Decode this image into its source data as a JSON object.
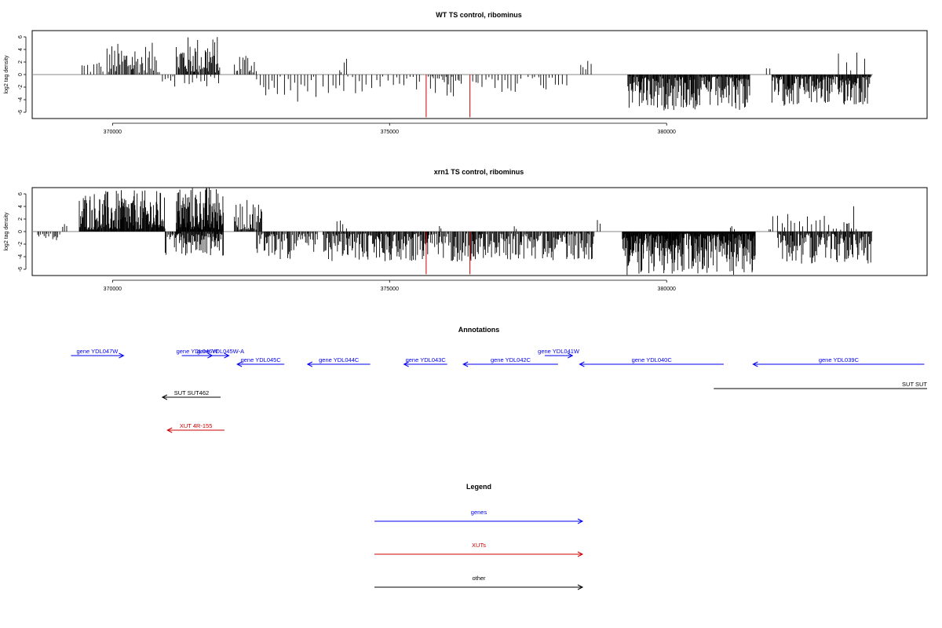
{
  "chart_data": [
    {
      "type": "bar",
      "title": "WT TS control, ribominus",
      "ylabel": "log2 tag density",
      "xlabel": "",
      "xlim": [
        368550,
        384700
      ],
      "ylim": [
        -7,
        7
      ],
      "xticks": [
        370000,
        375000,
        380000
      ],
      "xtick_labels": [
        "370000",
        "375000",
        "380000"
      ],
      "yticks": [
        6,
        4,
        2,
        0,
        -2,
        -4,
        -6
      ],
      "ytick_labels": [
        "6",
        "4",
        "2",
        "0",
        "-2",
        "-4",
        "-6"
      ],
      "baseline_range": [
        368550,
        383720
      ],
      "regions": [
        {
          "start": 369450,
          "end": 369850,
          "sign": 1,
          "max": 2.3,
          "step": 45
        },
        {
          "start": 369900,
          "end": 370850,
          "sign": 1,
          "max": 4.8,
          "step": 22
        },
        {
          "start": 370900,
          "end": 371150,
          "sign": -1,
          "max": 2.8,
          "step": 40
        },
        {
          "start": 371150,
          "end": 371950,
          "sign": 1,
          "max": 5.9,
          "step": 15
        },
        {
          "start": 371300,
          "end": 371950,
          "sign": -1,
          "max": 1.8,
          "step": 60
        },
        {
          "start": 372200,
          "end": 372600,
          "sign": 1,
          "max": 3.6,
          "step": 28
        },
        {
          "start": 372600,
          "end": 373700,
          "sign": -1,
          "max": 4.2,
          "step": 55
        },
        {
          "start": 374100,
          "end": 374250,
          "sign": 1,
          "max": 2.3,
          "step": 40
        },
        {
          "start": 373800,
          "end": 375600,
          "sign": -1,
          "max": 2.7,
          "step": 75
        },
        {
          "start": 375700,
          "end": 376300,
          "sign": -1,
          "max": 3.6,
          "step": 32
        },
        {
          "start": 376500,
          "end": 377400,
          "sign": -1,
          "max": 2.6,
          "step": 55
        },
        {
          "start": 377500,
          "end": 378200,
          "sign": -1,
          "max": 2.2,
          "step": 60
        },
        {
          "start": 378450,
          "end": 378700,
          "sign": 1,
          "max": 2.0,
          "step": 60
        },
        {
          "start": 379300,
          "end": 381500,
          "sign": -1,
          "max": 5.5,
          "step": 12
        },
        {
          "start": 381800,
          "end": 381900,
          "sign": 1,
          "max": 1.6,
          "step": 50
        },
        {
          "start": 381900,
          "end": 383700,
          "sign": -1,
          "max": 4.7,
          "step": 12
        },
        {
          "start": 383100,
          "end": 383600,
          "sign": 1,
          "max": 3.5,
          "step": 120
        }
      ],
      "highlights": [
        {
          "x": 375660,
          "y": -6.8,
          "color": "#cc0000"
        },
        {
          "x": 376450,
          "y": -6.8,
          "color": "#cc0000"
        }
      ]
    },
    {
      "type": "bar",
      "title": "xrn1 TS control, ribominus",
      "ylabel": "log2 tag density",
      "xlabel": "",
      "xlim": [
        368550,
        384700
      ],
      "ylim": [
        -7,
        7
      ],
      "xticks": [
        370000,
        375000,
        380000
      ],
      "xtick_labels": [
        "370000",
        "375000",
        "380000"
      ],
      "yticks": [
        6,
        4,
        2,
        0,
        -2,
        -4,
        -6
      ],
      "ytick_labels": [
        "6",
        "4",
        "2",
        "0",
        "-2",
        "-4",
        "-6"
      ],
      "baseline_range": [
        368550,
        383720
      ],
      "regions": [
        {
          "start": 368650,
          "end": 369050,
          "sign": -1,
          "max": 1.3,
          "step": 30
        },
        {
          "start": 369100,
          "end": 369200,
          "sign": 1,
          "max": 1.0,
          "step": 50
        },
        {
          "start": 369400,
          "end": 370950,
          "sign": 1,
          "max": 6.3,
          "step": 10
        },
        {
          "start": 370950,
          "end": 371200,
          "sign": -1,
          "max": 3.5,
          "step": 18
        },
        {
          "start": 371150,
          "end": 372000,
          "sign": 1,
          "max": 7.0,
          "step": 8
        },
        {
          "start": 371150,
          "end": 372000,
          "sign": -1,
          "max": 3.6,
          "step": 12
        },
        {
          "start": 372200,
          "end": 372700,
          "sign": 1,
          "max": 4.8,
          "step": 14
        },
        {
          "start": 372600,
          "end": 373700,
          "sign": -1,
          "max": 4.2,
          "step": 18
        },
        {
          "start": 373800,
          "end": 375700,
          "sign": -1,
          "max": 4.5,
          "step": 14
        },
        {
          "start": 374050,
          "end": 374250,
          "sign": 1,
          "max": 2.3,
          "step": 50
        },
        {
          "start": 375650,
          "end": 376500,
          "sign": -1,
          "max": 4.5,
          "step": 18
        },
        {
          "start": 375900,
          "end": 375950,
          "sign": 1,
          "max": 0.9,
          "step": 40
        },
        {
          "start": 376500,
          "end": 378700,
          "sign": -1,
          "max": 4.3,
          "step": 16
        },
        {
          "start": 377250,
          "end": 377350,
          "sign": 1,
          "max": 1.6,
          "step": 50
        },
        {
          "start": 378750,
          "end": 378800,
          "sign": 1,
          "max": 2.0,
          "step": 40
        },
        {
          "start": 379200,
          "end": 381600,
          "sign": -1,
          "max": 6.6,
          "step": 8
        },
        {
          "start": 381150,
          "end": 381250,
          "sign": 1,
          "max": 0.8,
          "step": 40
        },
        {
          "start": 381850,
          "end": 381950,
          "sign": 1,
          "max": 2.5,
          "step": 40
        },
        {
          "start": 382000,
          "end": 383700,
          "sign": -1,
          "max": 4.8,
          "step": 14
        },
        {
          "start": 382000,
          "end": 383500,
          "sign": 1,
          "max": 2.6,
          "step": 70
        },
        {
          "start": 383250,
          "end": 383400,
          "sign": 1,
          "max": 4.2,
          "step": 35
        }
      ],
      "highlights": [
        {
          "x": 375660,
          "y": -6.8,
          "color": "#cc0000"
        },
        {
          "x": 376450,
          "y": -6.8,
          "color": "#cc0000"
        }
      ]
    }
  ],
  "annotations": {
    "title": "Annotations",
    "features": [
      {
        "label": "gene YDL047W",
        "start": 369250,
        "end": 370200,
        "strand": "+",
        "color": "#0000ee",
        "row": 0
      },
      {
        "label": "gene YDL046W",
        "start": 371250,
        "end": 371800,
        "strand": "+",
        "color": "#0000ee",
        "row": 0
      },
      {
        "label": "gene YDL045W-A",
        "start": 371800,
        "end": 372100,
        "strand": "+",
        "color": "#0000ee",
        "row": 0
      },
      {
        "label": "gene YDL041W",
        "start": 377800,
        "end": 378300,
        "strand": "+",
        "color": "#0000ee",
        "row": 0
      },
      {
        "label": "gene YDL045C",
        "start": 372250,
        "end": 373100,
        "strand": "-",
        "color": "#0000ee",
        "row": 1
      },
      {
        "label": "gene YDL044C",
        "start": 373520,
        "end": 374650,
        "strand": "-",
        "color": "#0000ee",
        "row": 1
      },
      {
        "label": "gene YDL043C",
        "start": 375260,
        "end": 376040,
        "strand": "-",
        "color": "#0000ee",
        "row": 1
      },
      {
        "label": "gene YDL042C",
        "start": 376330,
        "end": 378040,
        "strand": "-",
        "color": "#0000ee",
        "row": 1
      },
      {
        "label": "gene YDL040C",
        "start": 378430,
        "end": 381030,
        "strand": "-",
        "color": "#0000ee",
        "row": 1
      },
      {
        "label": "gene YDL039C",
        "start": 381560,
        "end": 384650,
        "strand": "-",
        "color": "#0000ee",
        "row": 1
      },
      {
        "label": "SUT SUT",
        "start": 380850,
        "end": 384700,
        "strand": "none",
        "color": "#000000",
        "row": 2
      },
      {
        "label": "SUT SUT462",
        "start": 370900,
        "end": 371950,
        "strand": "-",
        "color": "#000000",
        "row": 3
      },
      {
        "label": "XUT 4R-155",
        "start": 370990,
        "end": 372020,
        "strand": "-",
        "color": "#cc0000",
        "row": 4
      }
    ]
  },
  "legend": {
    "title": "Legend",
    "items": [
      {
        "label": "genes",
        "color": "#0000ee"
      },
      {
        "label": "XUTs",
        "color": "#cc0000"
      },
      {
        "label": "other",
        "color": "#000000"
      }
    ]
  }
}
